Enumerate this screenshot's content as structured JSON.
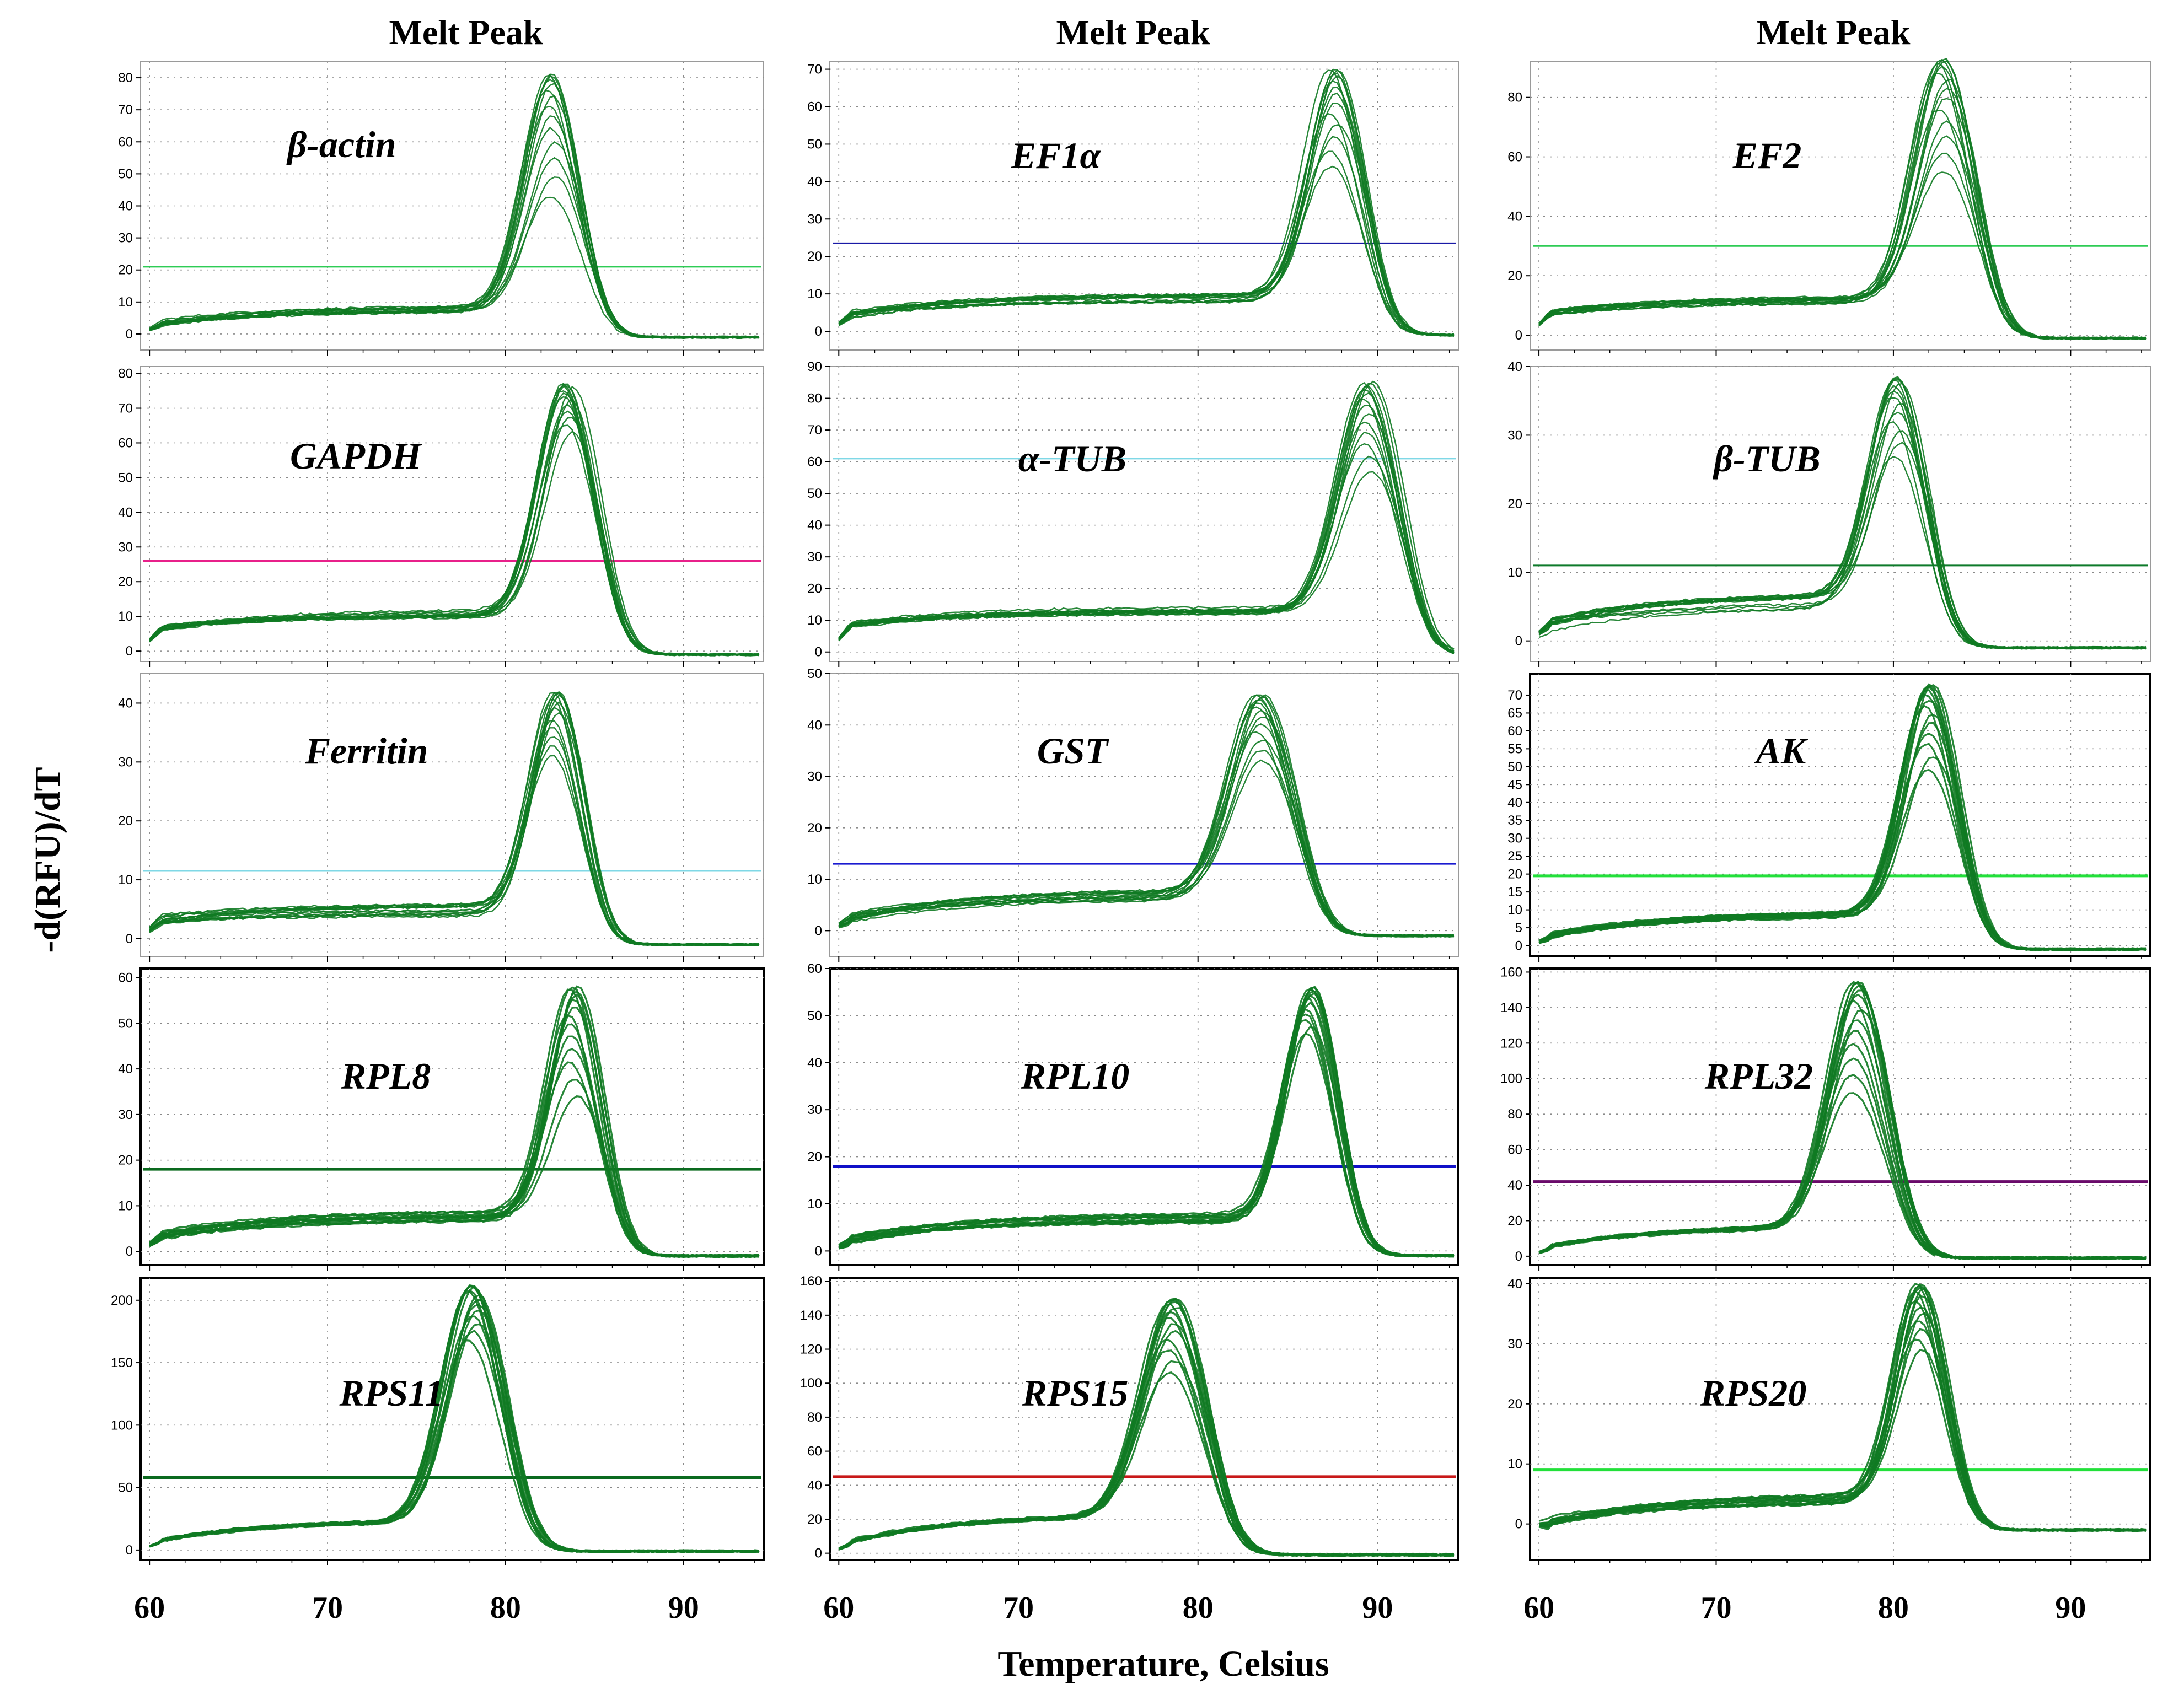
{
  "figure": {
    "y_axis_title": "-d(RFU)/dT",
    "x_axis_title": "Temperature, Celsius",
    "column_titles": [
      "Melt Peak",
      "Melt Peak",
      "Melt Peak"
    ],
    "x_tick_labels": [
      "60",
      "70",
      "80",
      "90"
    ]
  },
  "chart_data": [
    {
      "type": "line",
      "gene": "β-actin",
      "xlim": [
        59.5,
        94.5
      ],
      "ylim": [
        -5,
        85
      ],
      "yticks": [
        0,
        10,
        20,
        30,
        40,
        50,
        60,
        70,
        80
      ],
      "threshold": 21,
      "threshold_color": "#2ecc55",
      "peak_temp": 82.5,
      "peak_max": 81,
      "peak_min": 43,
      "baseline_start": 3,
      "baseline_end": 8,
      "peak_width": 1.5,
      "bold_frame": false
    },
    {
      "type": "line",
      "gene": "EF1α",
      "xlim": [
        59.5,
        94.5
      ],
      "ylim": [
        -5,
        72
      ],
      "yticks": [
        0,
        10,
        20,
        30,
        40,
        50,
        60,
        70
      ],
      "threshold": 23.5,
      "threshold_color": "#1a1aa6",
      "peak_temp": 87.5,
      "peak_max": 70,
      "peak_min": 44,
      "baseline_start": 4,
      "baseline_end": 9,
      "peak_width": 1.5,
      "bold_frame": false
    },
    {
      "type": "line",
      "gene": "EF2",
      "xlim": [
        59.5,
        94.5
      ],
      "ylim": [
        -5,
        92
      ],
      "yticks": [
        0,
        20,
        40,
        60,
        80
      ],
      "threshold": 30,
      "threshold_color": "#2ecc55",
      "peak_temp": 82.8,
      "peak_max": 93,
      "peak_min": 55,
      "baseline_start": 7,
      "baseline_end": 12,
      "peak_width": 1.6,
      "bold_frame": false
    },
    {
      "type": "line",
      "gene": "GAPDH",
      "xlim": [
        59.5,
        94.5
      ],
      "ylim": [
        -3,
        82
      ],
      "yticks": [
        0,
        10,
        20,
        30,
        40,
        50,
        60,
        70,
        80
      ],
      "threshold": 26,
      "threshold_color": "#e8208a",
      "peak_temp": 83.5,
      "peak_max": 77,
      "peak_min": 63,
      "baseline_start": 6,
      "baseline_end": 11,
      "peak_width": 1.5,
      "bold_frame": false
    },
    {
      "type": "line",
      "gene": "α-TUB",
      "xlim": [
        59.5,
        94.5
      ],
      "ylim": [
        -3,
        90
      ],
      "yticks": [
        0,
        10,
        20,
        30,
        40,
        50,
        60,
        70,
        80,
        90
      ],
      "threshold": 61,
      "threshold_color": "#7fd8e6",
      "peak_temp": 89.5,
      "peak_max": 85,
      "peak_min": 57,
      "baseline_start": 8,
      "baseline_end": 13,
      "peak_width": 1.6,
      "bold_frame": false
    },
    {
      "type": "line",
      "gene": "β-TUB",
      "xlim": [
        59.5,
        94.5
      ],
      "ylim": [
        -3,
        40
      ],
      "yticks": [
        0,
        10,
        20,
        30,
        40
      ],
      "threshold": 11,
      "threshold_color": "#0e7a2a",
      "peak_temp": 80.2,
      "peak_max": 38.5,
      "peak_min": 27,
      "baseline_start": 2,
      "baseline_end": 6,
      "peak_width": 1.5,
      "bold_frame": false
    },
    {
      "type": "line",
      "gene": "Ferritin",
      "xlim": [
        59.5,
        94.5
      ],
      "ylim": [
        -3,
        45
      ],
      "yticks": [
        0,
        10,
        20,
        30,
        40
      ],
      "threshold": 11.5,
      "threshold_color": "#7fd8e6",
      "peak_temp": 82.8,
      "peak_max": 42,
      "peak_min": 31,
      "baseline_start": 3,
      "baseline_end": 5,
      "peak_width": 1.4,
      "bold_frame": false
    },
    {
      "type": "line",
      "gene": "GST",
      "xlim": [
        59.5,
        94.5
      ],
      "ylim": [
        -5,
        50
      ],
      "yticks": [
        0,
        10,
        20,
        30,
        40,
        50
      ],
      "threshold": 13,
      "threshold_color": "#1a1ad0",
      "peak_temp": 83.5,
      "peak_max": 46,
      "peak_min": 33,
      "baseline_start": 2,
      "baseline_end": 7,
      "peak_width": 1.7,
      "bold_frame": false
    },
    {
      "type": "line",
      "gene": "AK",
      "xlim": [
        59.5,
        94.5
      ],
      "ylim": [
        -3,
        76
      ],
      "yticks": [
        0,
        5,
        10,
        15,
        20,
        25,
        30,
        35,
        40,
        45,
        50,
        55,
        60,
        65,
        70
      ],
      "threshold": 19.5,
      "threshold_color": "#22e03a",
      "peak_temp": 82,
      "peak_max": 73,
      "peak_min": 49,
      "baseline_start": 2,
      "baseline_end": 9,
      "peak_width": 1.5,
      "bold_frame": true
    },
    {
      "type": "line",
      "gene": "RPL8",
      "xlim": [
        59.5,
        94.5
      ],
      "ylim": [
        -3,
        62
      ],
      "yticks": [
        0,
        10,
        20,
        30,
        40,
        50,
        60
      ],
      "threshold": 18,
      "threshold_color": "#0b6a1f",
      "peak_temp": 83.8,
      "peak_max": 58,
      "peak_min": 34,
      "baseline_start": 3,
      "baseline_end": 8,
      "peak_width": 1.4,
      "bold_frame": true
    },
    {
      "type": "line",
      "gene": "RPL10",
      "xlim": [
        59.5,
        94.5
      ],
      "ylim": [
        -3,
        60
      ],
      "yticks": [
        0,
        10,
        20,
        30,
        40,
        50,
        60
      ],
      "threshold": 18,
      "threshold_color": "#1010c8",
      "peak_temp": 86.2,
      "peak_max": 56,
      "peak_min": 46,
      "baseline_start": 2,
      "baseline_end": 7,
      "peak_width": 1.4,
      "bold_frame": true
    },
    {
      "type": "line",
      "gene": "RPL32",
      "xlim": [
        59.5,
        94.5
      ],
      "ylim": [
        -5,
        162
      ],
      "yticks": [
        0,
        20,
        40,
        60,
        80,
        100,
        120,
        140,
        160
      ],
      "threshold": 42,
      "threshold_color": "#6a0a6a",
      "peak_temp": 78,
      "peak_max": 155,
      "peak_min": 92,
      "baseline_start": 4,
      "baseline_end": 17,
      "peak_width": 1.6,
      "bold_frame": true
    },
    {
      "type": "line",
      "gene": "RPS11",
      "xlim": [
        59.5,
        94.5
      ],
      "ylim": [
        -8,
        218
      ],
      "yticks": [
        0,
        50,
        100,
        150,
        200
      ],
      "threshold": 58,
      "threshold_color": "#0b6a1f",
      "peak_temp": 78.2,
      "peak_max": 212,
      "peak_min": 168,
      "baseline_start": 6,
      "baseline_end": 24,
      "peak_width": 1.6,
      "bold_frame": true
    },
    {
      "type": "line",
      "gene": "RPS15",
      "xlim": [
        59.5,
        94.5
      ],
      "ylim": [
        -4,
        162
      ],
      "yticks": [
        0,
        20,
        40,
        60,
        80,
        100,
        120,
        140,
        160
      ],
      "threshold": 45,
      "threshold_color": "#c81818",
      "peak_temp": 78.5,
      "peak_max": 150,
      "peak_min": 106,
      "baseline_start": 5,
      "baseline_end": 23,
      "peak_width": 1.7,
      "bold_frame": true
    },
    {
      "type": "line",
      "gene": "RPS20",
      "xlim": [
        59.5,
        94.5
      ],
      "ylim": [
        -6,
        41
      ],
      "yticks": [
        0,
        10,
        20,
        30,
        40
      ],
      "threshold": 9,
      "threshold_color": "#22e03a",
      "peak_temp": 81.5,
      "peak_max": 40,
      "peak_min": 29,
      "baseline_start": 0,
      "baseline_end": 4,
      "peak_width": 1.4,
      "bold_frame": true
    }
  ]
}
